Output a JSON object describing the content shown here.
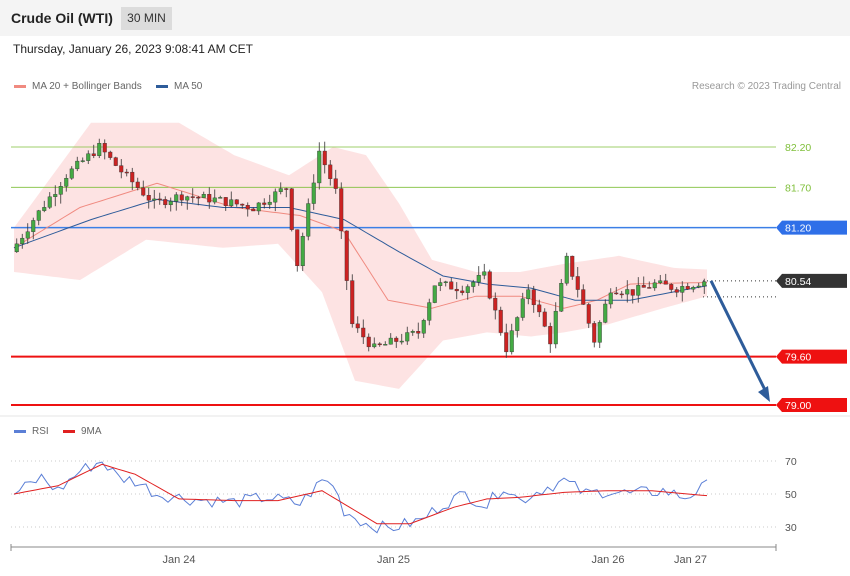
{
  "header": {
    "title": "Crude Oil (WTI)",
    "timeframe": "30 MIN"
  },
  "timestamp": "Thursday, January 26, 2023 9:08:41 AM CET",
  "copyright": "Research © 2023 Trading Central",
  "legend": {
    "ma20": {
      "label": "MA 20 + Bollinger Bands",
      "color": "#f08a80"
    },
    "ma50": {
      "label": "MA 50",
      "color": "#2e5c9a"
    },
    "rsi": {
      "label": "RSI",
      "color": "#5b7fd6"
    },
    "rsi_ma": {
      "label": "9MA",
      "color": "#e02020"
    }
  },
  "chart_data": [
    {
      "type": "candlestick",
      "series_name": "Crude Oil (WTI)",
      "x_ticks": [
        "Jan 24",
        "Jan 25",
        "Jan 26",
        "Jan 27"
      ],
      "x_tick_index": [
        30,
        69,
        108,
        123
      ],
      "ylim": [
        78.95,
        83.0
      ],
      "bars": 126,
      "start_price": 80.9,
      "waypoints": [
        [
          0,
          80.9
        ],
        [
          4,
          81.3
        ],
        [
          10,
          81.85
        ],
        [
          16,
          82.2
        ],
        [
          20,
          81.9
        ],
        [
          26,
          81.5
        ],
        [
          31,
          81.6
        ],
        [
          37,
          81.55
        ],
        [
          44,
          81.45
        ],
        [
          50,
          81.7
        ],
        [
          52,
          80.75
        ],
        [
          56,
          82.15
        ],
        [
          59,
          81.65
        ],
        [
          62,
          80.0
        ],
        [
          66,
          79.7
        ],
        [
          70,
          79.8
        ],
        [
          74,
          79.9
        ],
        [
          77,
          80.5
        ],
        [
          82,
          80.45
        ],
        [
          86,
          80.6
        ],
        [
          90,
          79.7
        ],
        [
          94,
          80.45
        ],
        [
          98,
          79.8
        ],
        [
          101,
          80.8
        ],
        [
          103,
          80.45
        ],
        [
          106,
          79.8
        ],
        [
          109,
          80.45
        ],
        [
          113,
          80.4
        ],
        [
          117,
          80.5
        ],
        [
          121,
          80.45
        ],
        [
          126,
          80.54
        ]
      ],
      "ma20_waypoints": [
        [
          0,
          80.95
        ],
        [
          12,
          81.45
        ],
        [
          26,
          81.75
        ],
        [
          40,
          81.45
        ],
        [
          52,
          81.35
        ],
        [
          60,
          81.15
        ],
        [
          68,
          80.3
        ],
        [
          76,
          80.2
        ],
        [
          84,
          80.35
        ],
        [
          92,
          80.35
        ],
        [
          100,
          80.2
        ],
        [
          106,
          80.3
        ],
        [
          112,
          80.5
        ],
        [
          126,
          80.52
        ]
      ],
      "ma50_waypoints": [
        [
          0,
          80.95
        ],
        [
          14,
          81.3
        ],
        [
          26,
          81.55
        ],
        [
          38,
          81.45
        ],
        [
          50,
          81.45
        ],
        [
          60,
          81.3
        ],
        [
          70,
          80.9
        ],
        [
          78,
          80.6
        ],
        [
          86,
          80.5
        ],
        [
          94,
          80.45
        ],
        [
          102,
          80.3
        ],
        [
          112,
          80.3
        ],
        [
          126,
          80.48
        ]
      ],
      "bb_upper_waypoints": [
        [
          0,
          81.2
        ],
        [
          14,
          82.5
        ],
        [
          30,
          82.5
        ],
        [
          40,
          82.1
        ],
        [
          50,
          81.85
        ],
        [
          58,
          82.2
        ],
        [
          64,
          82.1
        ],
        [
          70,
          81.5
        ],
        [
          76,
          80.8
        ],
        [
          84,
          80.65
        ],
        [
          92,
          80.65
        ],
        [
          100,
          80.75
        ],
        [
          110,
          80.85
        ],
        [
          120,
          80.7
        ],
        [
          126,
          80.68
        ]
      ],
      "bb_lower_waypoints": [
        [
          0,
          80.65
        ],
        [
          12,
          80.55
        ],
        [
          24,
          81.05
        ],
        [
          38,
          80.95
        ],
        [
          48,
          81.0
        ],
        [
          56,
          80.4
        ],
        [
          62,
          79.3
        ],
        [
          70,
          79.2
        ],
        [
          78,
          79.8
        ],
        [
          86,
          79.9
        ],
        [
          94,
          79.85
        ],
        [
          100,
          79.9
        ],
        [
          108,
          80.0
        ],
        [
          118,
          80.2
        ],
        [
          126,
          80.35
        ]
      ],
      "levels": [
        {
          "value": 82.2,
          "label": "82.20",
          "color": "#7fbf3a",
          "style": "thin-line"
        },
        {
          "value": 81.7,
          "label": "81.70",
          "color": "#7fbf3a",
          "style": "thin-line"
        },
        {
          "value": 81.2,
          "label": "81.20",
          "color": "#3b7fe6",
          "style": "resistance"
        },
        {
          "value": 80.54,
          "label": "80.54",
          "color": "#3a3a3a",
          "style": "last-price"
        },
        {
          "value": 79.6,
          "label": "79.60",
          "color": "#ee1111",
          "style": "support"
        },
        {
          "value": 79.0,
          "label": "79.00",
          "color": "#ee1111",
          "style": "support"
        }
      ],
      "forecast_arrow": {
        "from": 80.54,
        "to": 79.0,
        "color": "#2e5c9a"
      }
    },
    {
      "type": "line",
      "series_name": "RSI",
      "ylim": [
        20,
        78
      ],
      "y_ticks": [
        "70",
        "50",
        "30"
      ],
      "y_tick_values": [
        70,
        50,
        30
      ],
      "rsi_waypoints": [
        [
          0,
          50
        ],
        [
          5,
          60
        ],
        [
          8,
          52
        ],
        [
          12,
          64
        ],
        [
          16,
          70
        ],
        [
          19,
          60
        ],
        [
          22,
          58
        ],
        [
          26,
          50
        ],
        [
          32,
          47
        ],
        [
          40,
          45
        ],
        [
          46,
          48
        ],
        [
          52,
          44
        ],
        [
          56,
          58
        ],
        [
          58,
          56
        ],
        [
          60,
          40
        ],
        [
          64,
          32
        ],
        [
          68,
          29
        ],
        [
          74,
          34
        ],
        [
          78,
          44
        ],
        [
          82,
          50
        ],
        [
          86,
          43
        ],
        [
          89,
          55
        ],
        [
          92,
          46
        ],
        [
          96,
          53
        ],
        [
          100,
          58
        ],
        [
          104,
          50
        ],
        [
          108,
          52
        ],
        [
          112,
          50
        ],
        [
          118,
          52
        ],
        [
          122,
          48
        ],
        [
          126,
          55
        ]
      ],
      "ma_waypoints": [
        [
          0,
          50
        ],
        [
          8,
          55
        ],
        [
          16,
          68
        ],
        [
          22,
          62
        ],
        [
          30,
          47
        ],
        [
          40,
          46
        ],
        [
          48,
          46
        ],
        [
          56,
          52
        ],
        [
          62,
          40
        ],
        [
          66,
          32
        ],
        [
          72,
          32
        ],
        [
          80,
          42
        ],
        [
          86,
          47
        ],
        [
          92,
          48
        ],
        [
          100,
          51
        ],
        [
          108,
          52
        ],
        [
          116,
          52
        ],
        [
          126,
          49
        ]
      ]
    }
  ]
}
